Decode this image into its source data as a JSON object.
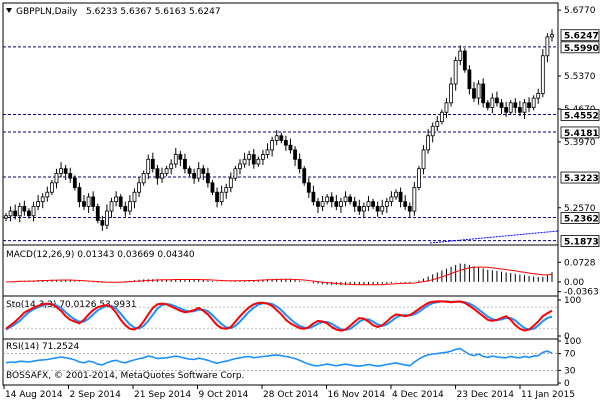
{
  "header": {
    "symbol": "GBPPLN,Daily",
    "ohlc": "5.6233 5.6367 5.6163 5.6247"
  },
  "copyright": "BOSSAFX, © 2001-2014, MetaQuotes Software Corp.",
  "colors": {
    "background": "#ffffff",
    "candle": "#000000",
    "level_line": "#000080",
    "macd_hist": "#000000",
    "macd_signal": "#ff0000",
    "stoch_main": "#ff0000",
    "stoch_signal": "#1e90ff",
    "rsi": "#1e90ff",
    "trendline": "#0000ff"
  },
  "chart_data": [
    {
      "type": "candlestick",
      "title": "GBPPLN,Daily",
      "ylim": [
        5.18,
        5.69
      ],
      "price_axis_ticks": [
        "5.6770",
        "5.6247",
        "5.5990",
        "5.5370",
        "5.4670",
        "5.4552",
        "5.4181",
        "5.3970",
        "5.3223",
        "5.2570",
        "5.2362",
        "5.1873"
      ],
      "levels": [
        5.599,
        5.4552,
        5.4181,
        5.3223,
        5.2362,
        5.1873
      ],
      "current_price": 5.6247,
      "date_labels": [
        "14 Aug 2014",
        "2 Sep 2014",
        "21 Sep 2014",
        "9 Oct 2014",
        "28 Oct 2014",
        "16 Nov 2014",
        "4 Dec 2014",
        "23 Dec 2014",
        "11 Jan 2015"
      ],
      "closes": [
        5.24,
        5.25,
        5.24,
        5.26,
        5.25,
        5.24,
        5.26,
        5.27,
        5.28,
        5.29,
        5.31,
        5.33,
        5.34,
        5.33,
        5.32,
        5.3,
        5.27,
        5.26,
        5.28,
        5.26,
        5.23,
        5.22,
        5.25,
        5.27,
        5.28,
        5.26,
        5.25,
        5.27,
        5.29,
        5.31,
        5.33,
        5.36,
        5.34,
        5.32,
        5.33,
        5.34,
        5.35,
        5.37,
        5.36,
        5.34,
        5.33,
        5.32,
        5.34,
        5.33,
        5.31,
        5.29,
        5.27,
        5.29,
        5.3,
        5.32,
        5.34,
        5.35,
        5.36,
        5.37,
        5.35,
        5.36,
        5.37,
        5.38,
        5.4,
        5.41,
        5.4,
        5.39,
        5.38,
        5.36,
        5.34,
        5.31,
        5.29,
        5.27,
        5.26,
        5.27,
        5.28,
        5.27,
        5.26,
        5.27,
        5.28,
        5.27,
        5.26,
        5.25,
        5.26,
        5.27,
        5.26,
        5.25,
        5.26,
        5.27,
        5.28,
        5.29,
        5.27,
        5.26,
        5.25,
        5.3,
        5.34,
        5.38,
        5.41,
        5.43,
        5.44,
        5.46,
        5.48,
        5.52,
        5.57,
        5.59,
        5.55,
        5.51,
        5.49,
        5.52,
        5.48,
        5.47,
        5.49,
        5.48,
        5.47,
        5.46,
        5.48,
        5.47,
        5.46,
        5.48,
        5.47,
        5.49,
        5.5,
        5.58,
        5.62,
        5.6247
      ]
    },
    {
      "type": "line",
      "title": "MACD(12,26,9) 0.01343 0.03669 0.04340",
      "ylim": [
        -0.045,
        0.085
      ],
      "ticks": [
        "0.0728",
        "0.00",
        "-0.0363"
      ],
      "series": [
        {
          "name": "MACD",
          "values": [
            0.0,
            0.001,
            0.002,
            0.003,
            0.004,
            0.004,
            0.005,
            0.006,
            0.006,
            0.007,
            0.008,
            0.008,
            0.008,
            0.007,
            0.006,
            0.004,
            0.002,
            0.0,
            -0.001,
            -0.002,
            -0.003,
            -0.003,
            -0.002,
            -0.001,
            0.0,
            0.001,
            0.002,
            0.004,
            0.006,
            0.008,
            0.009,
            0.01,
            0.01,
            0.01,
            0.009,
            0.009,
            0.009,
            0.01,
            0.01,
            0.01,
            0.009,
            0.008,
            0.008,
            0.007,
            0.005,
            0.003,
            0.002,
            0.001,
            0.001,
            0.002,
            0.003,
            0.004,
            0.005,
            0.006,
            0.007,
            0.008,
            0.009,
            0.01,
            0.011,
            0.012,
            0.011,
            0.01,
            0.009,
            0.007,
            0.004,
            0.001,
            -0.002,
            -0.005,
            -0.007,
            -0.009,
            -0.01,
            -0.011,
            -0.011,
            -0.012,
            -0.012,
            -0.012,
            -0.012,
            -0.012,
            -0.011,
            -0.01,
            -0.009,
            -0.008,
            -0.007,
            -0.006,
            -0.004,
            -0.002,
            -0.002,
            -0.003,
            -0.004,
            0.0,
            0.005,
            0.012,
            0.02,
            0.028,
            0.035,
            0.042,
            0.049,
            0.056,
            0.063,
            0.068,
            0.067,
            0.063,
            0.058,
            0.055,
            0.05,
            0.045,
            0.043,
            0.041,
            0.038,
            0.035,
            0.033,
            0.03,
            0.027,
            0.025,
            0.022,
            0.02,
            0.018,
            0.019,
            0.025,
            0.036
          ]
        },
        {
          "name": "Signal",
          "values": [
            0.0,
            0.0,
            0.001,
            0.002,
            0.002,
            0.003,
            0.003,
            0.004,
            0.005,
            0.005,
            0.006,
            0.006,
            0.007,
            0.007,
            0.007,
            0.006,
            0.005,
            0.004,
            0.003,
            0.002,
            0.001,
            0.0,
            -0.001,
            -0.001,
            -0.001,
            -0.001,
            0.0,
            0.001,
            0.002,
            0.003,
            0.004,
            0.005,
            0.006,
            0.007,
            0.008,
            0.008,
            0.008,
            0.009,
            0.009,
            0.009,
            0.009,
            0.009,
            0.009,
            0.008,
            0.008,
            0.007,
            0.006,
            0.005,
            0.004,
            0.004,
            0.004,
            0.004,
            0.004,
            0.005,
            0.005,
            0.006,
            0.007,
            0.008,
            0.008,
            0.009,
            0.01,
            0.01,
            0.01,
            0.009,
            0.008,
            0.007,
            0.005,
            0.003,
            0.001,
            -0.001,
            -0.003,
            -0.004,
            -0.006,
            -0.007,
            -0.008,
            -0.009,
            -0.01,
            -0.01,
            -0.011,
            -0.011,
            -0.011,
            -0.01,
            -0.01,
            -0.009,
            -0.008,
            -0.007,
            -0.006,
            -0.005,
            -0.005,
            -0.004,
            -0.002,
            0.001,
            0.004,
            0.008,
            0.013,
            0.019,
            0.024,
            0.031,
            0.037,
            0.043,
            0.048,
            0.052,
            0.054,
            0.055,
            0.055,
            0.054,
            0.052,
            0.05,
            0.048,
            0.046,
            0.043,
            0.041,
            0.038,
            0.036,
            0.033,
            0.03,
            0.028,
            0.026,
            0.026,
            0.028
          ]
        }
      ]
    },
    {
      "type": "line",
      "title": "Sto(14,3,3) 70.0126 53.9931",
      "ylim": [
        0,
        100
      ],
      "ticks": [
        "100",
        "0"
      ],
      "series": [
        {
          "name": "Main",
          "values": [
            20,
            30,
            40,
            52,
            65,
            72,
            78,
            84,
            88,
            90,
            88,
            80,
            70,
            55,
            45,
            40,
            35,
            45,
            60,
            72,
            80,
            84,
            86,
            80,
            65,
            45,
            30,
            20,
            18,
            25,
            40,
            60,
            78,
            88,
            90,
            88,
            82,
            76,
            70,
            66,
            68,
            72,
            78,
            70,
            60,
            45,
            30,
            22,
            20,
            25,
            40,
            55,
            68,
            80,
            88,
            92,
            92,
            90,
            84,
            72,
            60,
            45,
            35,
            28,
            22,
            20,
            25,
            35,
            42,
            40,
            35,
            25,
            18,
            15,
            18,
            28,
            40,
            50,
            48,
            40,
            30,
            25,
            30,
            40,
            52,
            60,
            58,
            55,
            58,
            66,
            75,
            84,
            92,
            95,
            96,
            96,
            95,
            94,
            95,
            96,
            92,
            84,
            75,
            65,
            55,
            45,
            42,
            45,
            50,
            55,
            45,
            30,
            20,
            15,
            18,
            28,
            40,
            55,
            63,
            70
          ]
        },
        {
          "name": "Signal",
          "values": [
            18,
            25,
            33,
            42,
            55,
            66,
            74,
            80,
            85,
            88,
            89,
            85,
            78,
            66,
            55,
            46,
            40,
            40,
            48,
            60,
            71,
            79,
            84,
            84,
            76,
            62,
            46,
            32,
            23,
            21,
            28,
            42,
            59,
            76,
            86,
            89,
            87,
            82,
            76,
            71,
            68,
            69,
            73,
            73,
            69,
            58,
            45,
            33,
            24,
            22,
            28,
            40,
            54,
            68,
            79,
            87,
            91,
            91,
            89,
            82,
            72,
            59,
            47,
            36,
            28,
            23,
            22,
            27,
            34,
            39,
            39,
            34,
            26,
            19,
            17,
            20,
            29,
            40,
            46,
            46,
            40,
            32,
            28,
            32,
            41,
            51,
            57,
            58,
            57,
            60,
            67,
            76,
            85,
            91,
            94,
            96,
            96,
            95,
            95,
            95,
            94,
            90,
            83,
            74,
            64,
            54,
            47,
            44,
            46,
            50,
            50,
            43,
            32,
            22,
            18,
            20,
            29,
            41,
            50,
            54
          ]
        }
      ]
    },
    {
      "type": "line",
      "title": "RSI(14) 71.2524",
      "ylim": [
        0,
        100
      ],
      "ticks": [
        "100",
        "70",
        "30",
        "0"
      ],
      "series": [
        {
          "name": "RSI",
          "values": [
            48,
            50,
            49,
            52,
            51,
            50,
            52,
            54,
            55,
            56,
            58,
            60,
            62,
            60,
            58,
            55,
            50,
            48,
            52,
            50,
            45,
            43,
            48,
            52,
            54,
            50,
            48,
            52,
            55,
            58,
            60,
            64,
            62,
            58,
            59,
            60,
            62,
            64,
            62,
            59,
            57,
            56,
            59,
            57,
            54,
            50,
            47,
            50,
            52,
            55,
            58,
            60,
            62,
            63,
            60,
            62,
            63,
            64,
            66,
            67,
            65,
            63,
            61,
            58,
            54,
            49,
            45,
            42,
            41,
            43,
            45,
            43,
            41,
            43,
            45,
            43,
            41,
            40,
            42,
            44,
            42,
            40,
            42,
            44,
            46,
            48,
            45,
            43,
            41,
            50,
            57,
            63,
            67,
            69,
            70,
            72,
            73,
            76,
            80,
            82,
            75,
            68,
            65,
            69,
            63,
            61,
            64,
            62,
            61,
            60,
            63,
            61,
            60,
            63,
            61,
            64,
            65,
            73,
            76,
            71.2524
          ]
        }
      ]
    }
  ]
}
